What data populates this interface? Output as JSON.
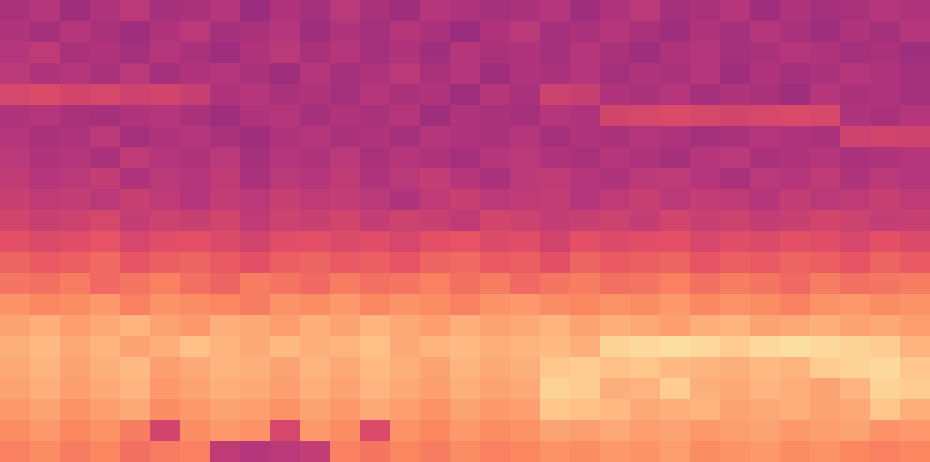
{
  "chart_data": {
    "type": "heatmap",
    "tick_labels": false,
    "grid": false,
    "zlim": [
      -80,
      0
    ],
    "cells": [
      [
        -42,
        -40,
        -44,
        -41,
        -39,
        -43,
        -42,
        -40,
        -45,
        -41,
        -43,
        -39,
        -42,
        -44,
        -40,
        -41,
        -43,
        -42,
        -40,
        -44,
        -41,
        -39,
        -43,
        -42,
        -40,
        -44,
        -41,
        -43,
        -42,
        -40,
        -41
      ],
      [
        -41,
        -43,
        -40,
        -42,
        -44,
        -41,
        -39,
        -43,
        -42,
        -40,
        -44,
        -41,
        -43,
        -40,
        -42,
        -45,
        -41,
        -39,
        -43,
        -42,
        -40,
        -42,
        -44,
        -41,
        -43,
        -40,
        -42,
        -44,
        -41,
        -43,
        -40
      ],
      [
        -40,
        -38,
        -42,
        -41,
        -43,
        -40,
        -42,
        -44,
        -41,
        -39,
        -42,
        -40,
        -43,
        -41,
        -44,
        -40,
        -42,
        -41,
        -43,
        -40,
        -42,
        -44,
        -41,
        -40,
        -43,
        -42,
        -40,
        -41,
        -43,
        -42,
        -44
      ],
      [
        -39,
        -41,
        -40,
        -42,
        -39,
        -43,
        -41,
        -40,
        -42,
        -44,
        -40,
        -43,
        -41,
        -39,
        -42,
        -40,
        -44,
        -41,
        -42,
        -40,
        -43,
        -41,
        -42,
        -40,
        -44,
        -41,
        -43,
        -42,
        -40,
        -41,
        -43
      ],
      [
        -33,
        -32,
        -34,
        -33,
        -35,
        -34,
        -36,
        -41,
        -40,
        -42,
        -41,
        -43,
        -40,
        -42,
        -41,
        -44,
        -40,
        -42,
        -35,
        -36,
        -41,
        -42,
        -40,
        -43,
        -41,
        -42,
        -44,
        -40,
        -42,
        -41,
        -43
      ],
      [
        -41,
        -40,
        -42,
        -43,
        -41,
        -40,
        -42,
        -44,
        -41,
        -40,
        -43,
        -41,
        -42,
        -40,
        -44,
        -41,
        -42,
        -43,
        -40,
        -41,
        -34,
        -33,
        -32,
        -33,
        -34,
        -33,
        -32,
        -33,
        -41,
        -42,
        -40
      ],
      [
        -40,
        -42,
        -41,
        -39,
        -43,
        -41,
        -40,
        -42,
        -44,
        -41,
        -40,
        -42,
        -41,
        -43,
        -40,
        -41,
        -42,
        -40,
        -43,
        -41,
        -42,
        -40,
        -41,
        -43,
        -42,
        -40,
        -41,
        -42,
        -35,
        -34,
        -35
      ],
      [
        -39,
        -41,
        -40,
        -42,
        -38,
        -40,
        -41,
        -39,
        -43,
        -40,
        -41,
        -39,
        -42,
        -40,
        -41,
        -43,
        -40,
        -39,
        -41,
        -42,
        -40,
        -41,
        -43,
        -40,
        -39,
        -42,
        -41,
        -40,
        -42,
        -41,
        -40
      ],
      [
        -38,
        -40,
        -39,
        -37,
        -41,
        -39,
        -40,
        -38,
        -42,
        -39,
        -40,
        -38,
        -41,
        -39,
        -37,
        -40,
        -42,
        -39,
        -38,
        -40,
        -41,
        -39,
        -38,
        -40,
        -42,
        -39,
        -40,
        -38,
        -41,
        -39,
        -40
      ],
      [
        -36,
        -38,
        -37,
        -39,
        -36,
        -38,
        -40,
        -37,
        -39,
        -36,
        -38,
        -37,
        -39,
        -41,
        -38,
        -36,
        -39,
        -38,
        -37,
        -40,
        -38,
        -36,
        -39,
        -37,
        -38,
        -40,
        -37,
        -39,
        -38,
        -36,
        -38
      ],
      [
        -34,
        -36,
        -35,
        -33,
        -37,
        -35,
        -36,
        -34,
        -38,
        -35,
        -36,
        -34,
        -37,
        -35,
        -36,
        -38,
        -34,
        -35,
        -37,
        -36,
        -35,
        -37,
        -34,
        -36,
        -35,
        -37,
        -36,
        -34,
        -35,
        -37,
        -36
      ],
      [
        -30,
        -32,
        -31,
        -29,
        -33,
        -31,
        -30,
        -32,
        -34,
        -31,
        -30,
        -32,
        -31,
        -33,
        -30,
        -29,
        -32,
        -31,
        -34,
        -30,
        -32,
        -31,
        -30,
        -33,
        -31,
        -32,
        -30,
        -31,
        -33,
        -30,
        -32
      ],
      [
        -26,
        -28,
        -27,
        -25,
        -29,
        -27,
        -26,
        -28,
        -30,
        -27,
        -26,
        -28,
        -27,
        -29,
        -26,
        -25,
        -28,
        -27,
        -30,
        -26,
        -28,
        -27,
        -26,
        -29,
        -27,
        -28,
        -26,
        -27,
        -29,
        -26,
        -28
      ],
      [
        -23,
        -24,
        -22,
        -25,
        -23,
        -21,
        -24,
        -26,
        -22,
        -23,
        -25,
        -22,
        -24,
        -23,
        -21,
        -24,
        -22,
        -25,
        -23,
        -22,
        -24,
        -23,
        -21,
        -24,
        -22,
        -23,
        -25,
        -22,
        -24,
        -23,
        -22
      ],
      [
        -18,
        -20,
        -19,
        -17,
        -21,
        -18,
        -19,
        -20,
        -22,
        -18,
        -19,
        -17,
        -20,
        -18,
        -19,
        -21,
        -18,
        -17,
        -19,
        -20,
        -18,
        -19,
        -17,
        -20,
        -18,
        -19,
        -21,
        -18,
        -17,
        -19,
        -18
      ],
      [
        -15,
        -13,
        -16,
        -14,
        -12,
        -15,
        -17,
        -13,
        -14,
        -16,
        -13,
        -15,
        -12,
        -14,
        -16,
        -13,
        -15,
        -14,
        -12,
        -15,
        -13,
        -14,
        -16,
        -13,
        -12,
        -15,
        -14,
        -13,
        -15,
        -14,
        -16
      ],
      [
        -13,
        -11,
        -14,
        -12,
        -15,
        -13,
        -10,
        -12,
        -14,
        -11,
        -13,
        -12,
        -10,
        -14,
        -12,
        -11,
        -13,
        -12,
        -11,
        -13,
        -7,
        -6,
        -5,
        -6,
        -8,
        -6,
        -5,
        -6,
        -7,
        -8,
        -12
      ],
      [
        -14,
        -12,
        -15,
        -13,
        -11,
        -16,
        -14,
        -12,
        -13,
        -15,
        -12,
        -14,
        -11,
        -13,
        -15,
        -12,
        -14,
        -13,
        -9,
        -8,
        -10,
        -9,
        -11,
        -12,
        -13,
        -11,
        -12,
        -8,
        -7,
        -6,
        -9
      ],
      [
        -15,
        -13,
        -16,
        -14,
        -12,
        -17,
        -15,
        -13,
        -14,
        -16,
        -13,
        -15,
        -12,
        -14,
        -16,
        -13,
        -15,
        -14,
        -7,
        -8,
        -13,
        -12,
        -8,
        -13,
        -14,
        -12,
        -13,
        -15,
        -12,
        -7,
        -8
      ],
      [
        -17,
        -15,
        -18,
        -16,
        -14,
        -19,
        -17,
        -15,
        -16,
        -18,
        -15,
        -17,
        -14,
        -16,
        -18,
        -15,
        -17,
        -16,
        -9,
        -10,
        -11,
        -14,
        -13,
        -12,
        -15,
        -14,
        -13,
        -15,
        -14,
        -9,
        -13
      ],
      [
        -19,
        -17,
        -20,
        -18,
        -22,
        -34,
        -19,
        -17,
        -18,
        -33,
        -17,
        -19,
        -32,
        -18,
        -20,
        -17,
        -19,
        -18,
        -15,
        -16,
        -14,
        -16,
        -15,
        -17,
        -16,
        -15,
        -17,
        -16,
        -15,
        -18,
        -17
      ],
      [
        -21,
        -19,
        -22,
        -20,
        -24,
        -22,
        -21,
        -38,
        -40,
        -39,
        -37,
        -21,
        -23,
        -20,
        -22,
        -19,
        -21,
        -20,
        -18,
        -19,
        -17,
        -18,
        -16,
        -19,
        -18,
        -17,
        -19,
        -18,
        -20,
        -21,
        -20
      ]
    ]
  }
}
